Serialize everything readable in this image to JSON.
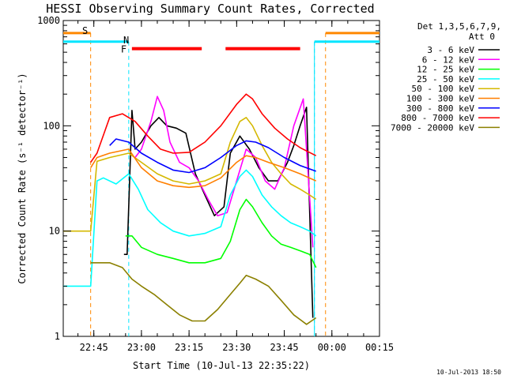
{
  "chart_data": {
    "type": "line",
    "title": "HESSI Observing Summary Count Rates, Corrected",
    "xlabel": "Start Time (10-Jul-13 22:35:22)",
    "ylabel": "Corrected Count Rate (s⁻¹ detector⁻¹)",
    "y_scale": "log",
    "ylim": [
      1,
      1000
    ],
    "xlim": [
      "22:35:22",
      "00:15:00"
    ],
    "x_ticks": [
      "22:45",
      "23:00",
      "23:15",
      "23:30",
      "23:45",
      "00:00",
      "00:15"
    ],
    "y_ticks": [
      "1",
      "10",
      "100",
      "1000"
    ],
    "legend_title": [
      "Det 1,3,5,6,7,9,",
      "Att 0"
    ],
    "legend_position": "right",
    "annotations": {
      "saa_label": "S",
      "night_label": "N",
      "flare_label": "F",
      "saa_intervals": [
        [
          "22:35:22",
          "22:44:00"
        ],
        [
          "23:58:00",
          "00:15:00"
        ]
      ],
      "night_intervals": [
        [
          "22:35:22",
          "22:56:00"
        ],
        [
          "23:54:30",
          "00:15:00"
        ]
      ],
      "flare_intervals": [
        [
          "22:57:00",
          "23:19:00"
        ],
        [
          "23:26:30",
          "23:50:00"
        ]
      ],
      "saa_color": "#ff8800",
      "night_color": "#00e5ff",
      "flare_color": "#ff0000"
    },
    "timestamp": "10-Jul-2013 18:50",
    "series": [
      {
        "name": "3 - 6 keV",
        "color": "#000000",
        "x": [
          "22:54:30",
          "22:55:30",
          "22:57:00",
          "22:58:00",
          "23:00:00",
          "23:03:00",
          "23:05:30",
          "23:08:00",
          "23:11:00",
          "23:14:00",
          "23:17:00",
          "23:20:00",
          "23:23:00",
          "23:26:00",
          "23:28:00",
          "23:31:00",
          "23:34:00",
          "23:37:00",
          "23:40:00",
          "23:43:00",
          "23:46:00",
          "23:48:00",
          "23:50:00",
          "23:52:00",
          "23:54:00"
        ],
        "y": [
          6,
          6,
          140,
          60,
          70,
          100,
          120,
          100,
          95,
          85,
          35,
          22,
          14,
          17,
          55,
          80,
          60,
          40,
          30,
          30,
          45,
          65,
          100,
          150,
          1.5
        ]
      },
      {
        "name": "6 - 12 keV",
        "color": "#ff00ff",
        "x": [
          "22:58:00",
          "23:00:00",
          "23:03:00",
          "23:05:00",
          "23:07:00",
          "23:09:00",
          "23:12:00",
          "23:15:00",
          "23:18:00",
          "23:21:00",
          "23:24:00",
          "23:27:00",
          "23:30:00",
          "23:33:00",
          "23:36:00",
          "23:39:00",
          "23:42:00",
          "23:45:00",
          "23:48:00",
          "23:51:00",
          "23:54:00"
        ],
        "y": [
          50,
          60,
          110,
          190,
          140,
          70,
          45,
          40,
          30,
          20,
          14,
          15,
          30,
          60,
          50,
          30,
          25,
          40,
          100,
          180,
          7
        ]
      },
      {
        "name": "12 - 25 keV",
        "color": "#00ff00",
        "x": [
          "22:55:00",
          "22:57:00",
          "23:00:00",
          "23:05:00",
          "23:10:00",
          "23:15:00",
          "23:20:00",
          "23:25:00",
          "23:28:00",
          "23:31:00",
          "23:33:00",
          "23:35:00",
          "23:38:00",
          "23:41:00",
          "23:44:00",
          "23:47:00",
          "23:50:00",
          "23:53:00",
          "23:55:00"
        ],
        "y": [
          9,
          9,
          7,
          6,
          5.5,
          5,
          5,
          5.5,
          8,
          16,
          20,
          17,
          12,
          9,
          7.5,
          7,
          6.5,
          6,
          4.5
        ]
      },
      {
        "name": "25 - 50 keV",
        "color": "#00ffff",
        "x": [
          "22:35:22",
          "22:44:00",
          "22:46:00",
          "22:48:00",
          "22:52:00",
          "22:56:00",
          "22:59:00",
          "23:02:00",
          "23:06:00",
          "23:10:00",
          "23:15:00",
          "23:20:00",
          "23:25:00",
          "23:28:00",
          "23:31:00",
          "23:33:00",
          "23:35:00",
          "23:38:00",
          "23:41:00",
          "23:44:00",
          "23:47:00",
          "23:50:00",
          "23:53:00",
          "23:55:00"
        ],
        "y": [
          3,
          3,
          30,
          32,
          28,
          35,
          25,
          16,
          12,
          10,
          9,
          9.5,
          11,
          22,
          33,
          38,
          33,
          22,
          17,
          14,
          12,
          11,
          10,
          9
        ]
      },
      {
        "name": "50 - 100 keV",
        "color": "#d4b800",
        "x": [
          "22:35:22",
          "22:44:00",
          "22:46:00",
          "22:50:00",
          "22:56:00",
          "23:00:00",
          "23:05:00",
          "23:10:00",
          "23:15:00",
          "23:20:00",
          "23:25:00",
          "23:28:00",
          "23:31:00",
          "23:33:00",
          "23:35:00",
          "23:38:00",
          "23:41:00",
          "23:44:00",
          "23:47:00",
          "23:50:00",
          "23:53:00",
          "23:55:00"
        ],
        "y": [
          10,
          10,
          46,
          50,
          55,
          45,
          35,
          30,
          28,
          30,
          35,
          70,
          110,
          120,
          100,
          65,
          45,
          35,
          28,
          25,
          22,
          20
        ]
      },
      {
        "name": "100 - 300 keV",
        "color": "#ff7f00",
        "x": [
          "22:44:00",
          "22:46:00",
          "22:50:00",
          "22:56:00",
          "23:00:00",
          "23:05:00",
          "23:10:00",
          "23:15:00",
          "23:20:00",
          "23:25:00",
          "23:30:00",
          "23:33:00",
          "23:36:00",
          "23:40:00",
          "23:45:00",
          "23:50:00",
          "23:55:00"
        ],
        "y": [
          40,
          50,
          55,
          60,
          40,
          30,
          27,
          26,
          27,
          32,
          45,
          52,
          50,
          45,
          40,
          35,
          30
        ]
      },
      {
        "name": "300 - 800 keV",
        "color": "#0000ff",
        "x": [
          "22:50:00",
          "22:52:00",
          "22:56:00",
          "23:00:00",
          "23:05:00",
          "23:10:00",
          "23:15:00",
          "23:20:00",
          "23:25:00",
          "23:30:00",
          "23:33:00",
          "23:36:00",
          "23:40:00",
          "23:45:00",
          "23:50:00",
          "23:55:00"
        ],
        "y": [
          65,
          75,
          70,
          55,
          45,
          38,
          36,
          40,
          50,
          65,
          72,
          70,
          62,
          50,
          42,
          37
        ]
      },
      {
        "name": "800 - 7000 keV",
        "color": "#ff0000",
        "x": [
          "22:44:00",
          "22:46:00",
          "22:50:00",
          "22:54:00",
          "22:58:00",
          "23:02:00",
          "23:06:00",
          "23:10:00",
          "23:15:00",
          "23:20:00",
          "23:25:00",
          "23:30:00",
          "23:33:00",
          "23:35:00",
          "23:38:00",
          "23:42:00",
          "23:46:00",
          "23:50:00",
          "23:55:00"
        ],
        "y": [
          45,
          55,
          120,
          130,
          110,
          80,
          60,
          55,
          56,
          70,
          100,
          160,
          200,
          180,
          130,
          95,
          75,
          62,
          52
        ]
      },
      {
        "name": "7000 - 20000 keV",
        "color": "#8b8000",
        "x": [
          "22:44:00",
          "22:46:00",
          "22:50:00",
          "22:54:00",
          "22:57:00",
          "23:00:00",
          "23:04:00",
          "23:08:00",
          "23:12:00",
          "23:16:00",
          "23:20:00",
          "23:24:00",
          "23:28:00",
          "23:31:00",
          "23:33:00",
          "23:36:00",
          "23:40:00",
          "23:44:00",
          "23:48:00",
          "23:52:00",
          "23:55:00"
        ],
        "y": [
          5,
          5,
          5,
          4.5,
          3.5,
          3,
          2.5,
          2,
          1.6,
          1.4,
          1.4,
          1.8,
          2.5,
          3.2,
          3.8,
          3.5,
          3,
          2.2,
          1.6,
          1.3,
          1.5
        ]
      }
    ]
  }
}
